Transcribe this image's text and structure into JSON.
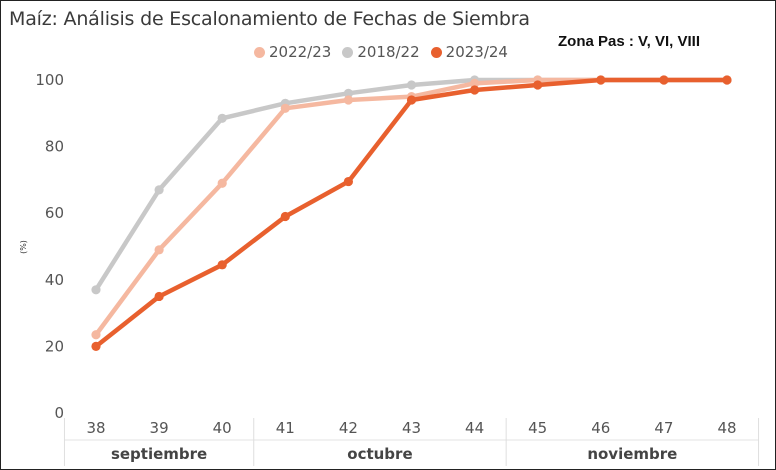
{
  "chart_data": {
    "type": "line",
    "title": "Maíz: Análisis de Escalonamiento de Fechas de Siembra",
    "annotation": "Zona Pas : V, VI, VIII",
    "ylabel": "(%)",
    "xlabel": "",
    "ylim": [
      0,
      100
    ],
    "yticks": [
      0,
      20,
      40,
      60,
      80,
      100
    ],
    "x": [
      38,
      39,
      40,
      41,
      42,
      43,
      44,
      45,
      46,
      47,
      48
    ],
    "month_groups": [
      {
        "label": "septiembre",
        "from": 38,
        "to": 40
      },
      {
        "label": "octubre",
        "from": 41,
        "to": 44
      },
      {
        "label": "noviembre",
        "from": 45,
        "to": 48
      }
    ],
    "legend_position": "top",
    "grid": false,
    "series": [
      {
        "name": "2022/23",
        "color": "#f5b8a0",
        "values": [
          23.5,
          49,
          69,
          91.5,
          94,
          95,
          99,
          100,
          100,
          100,
          100
        ]
      },
      {
        "name": "2018/22",
        "color": "#c8c8c8",
        "values": [
          37,
          67,
          88.5,
          93,
          96,
          98.5,
          100,
          100,
          100,
          100,
          100
        ]
      },
      {
        "name": "2023/24",
        "color": "#e8602e",
        "values": [
          20,
          35,
          44.5,
          59,
          69.5,
          94,
          97,
          98.5,
          100,
          100,
          100
        ]
      }
    ]
  }
}
